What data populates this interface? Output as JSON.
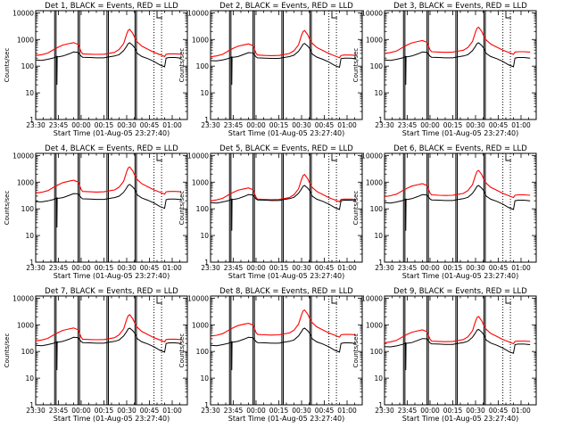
{
  "chart_data": {
    "type": "line",
    "layout": "3x3 grid",
    "shared": {
      "xlabel": "Start Time (01-Aug-05 23:27:40)",
      "ylabel": "Counts/sec",
      "x_tick_labels": [
        "23:30",
        "23:45",
        "00:00",
        "00:15",
        "00:30",
        "00:45",
        "01:00"
      ],
      "x_tick_values_min": [
        0,
        15,
        30,
        45,
        60,
        75,
        90
      ],
      "x_range_min": [
        0,
        100
      ],
      "y_scale": "log",
      "y_range": [
        1,
        12000
      ],
      "y_tick_labels": [
        "1",
        "10",
        "100",
        "1000",
        "10000"
      ],
      "y_tick_values": [
        1,
        10,
        100,
        1000,
        10000
      ],
      "marker_lines_solid_min": [
        12.5,
        28,
        47,
        65.5
      ],
      "marker_lines_dotted_min": [
        78,
        83
      ],
      "series_colors": {
        "events": "#000000",
        "lld": "#ff0000"
      },
      "time_min": [
        0,
        4,
        8,
        12,
        15,
        18,
        22,
        25,
        28,
        30,
        31,
        36,
        40,
        45,
        48,
        52,
        55,
        58,
        60,
        61,
        62,
        64,
        65.5,
        67,
        70,
        74,
        78,
        82,
        85,
        86,
        88,
        92,
        96
      ],
      "events_shape": [
        170,
        165,
        180,
        205,
        225,
        240,
        290,
        340,
        330,
        235,
        215,
        210,
        205,
        205,
        220,
        240,
        270,
        380,
        560,
        700,
        750,
        600,
        470,
        300,
        230,
        190,
        150,
        110,
        95,
        200,
        210,
        210,
        200
      ],
      "lld_shape": [
        250,
        270,
        310,
        420,
        520,
        620,
        700,
        760,
        650,
        340,
        290,
        280,
        275,
        280,
        300,
        330,
        420,
        700,
        1600,
        2200,
        2400,
        1700,
        1100,
        800,
        560,
        430,
        330,
        270,
        230,
        280,
        290,
        290,
        280
      ],
      "event_dip_min": 14
    },
    "panels": [
      {
        "title": "Det 1, BLACK = Events, RED = LLD",
        "events_scale": 1.0,
        "lld_scale": 1.0,
        "dip_value": 20
      },
      {
        "title": "Det 2, BLACK = Events, RED = LLD",
        "events_scale": 0.95,
        "lld_scale": 0.9,
        "dip_value": 20
      },
      {
        "title": "Det 3, BLACK = Events, RED = LLD",
        "events_scale": 1.0,
        "lld_scale": 1.2,
        "dip_value": 20
      },
      {
        "title": "Det 4, BLACK = Events, RED = LLD",
        "events_scale": 1.1,
        "lld_scale": 1.55,
        "dip_value": 20
      },
      {
        "title": "Det 5, BLACK = Events, RED = LLD",
        "events_scale": 1.0,
        "lld_scale": 0.8,
        "dip_value": 15
      },
      {
        "title": "Det 6, BLACK = Events, RED = LLD",
        "events_scale": 1.0,
        "lld_scale": 1.15,
        "dip_value": 15
      },
      {
        "title": "Det 7, BLACK = Events, RED = LLD",
        "events_scale": 1.0,
        "lld_scale": 1.0,
        "dip_value": 20
      },
      {
        "title": "Det 8, BLACK = Events, RED = LLD",
        "events_scale": 1.0,
        "lld_scale": 1.5,
        "dip_value": 20
      },
      {
        "title": "Det 9, BLACK = Events, RED = LLD",
        "events_scale": 0.9,
        "lld_scale": 0.85,
        "dip_value": 20
      }
    ]
  }
}
